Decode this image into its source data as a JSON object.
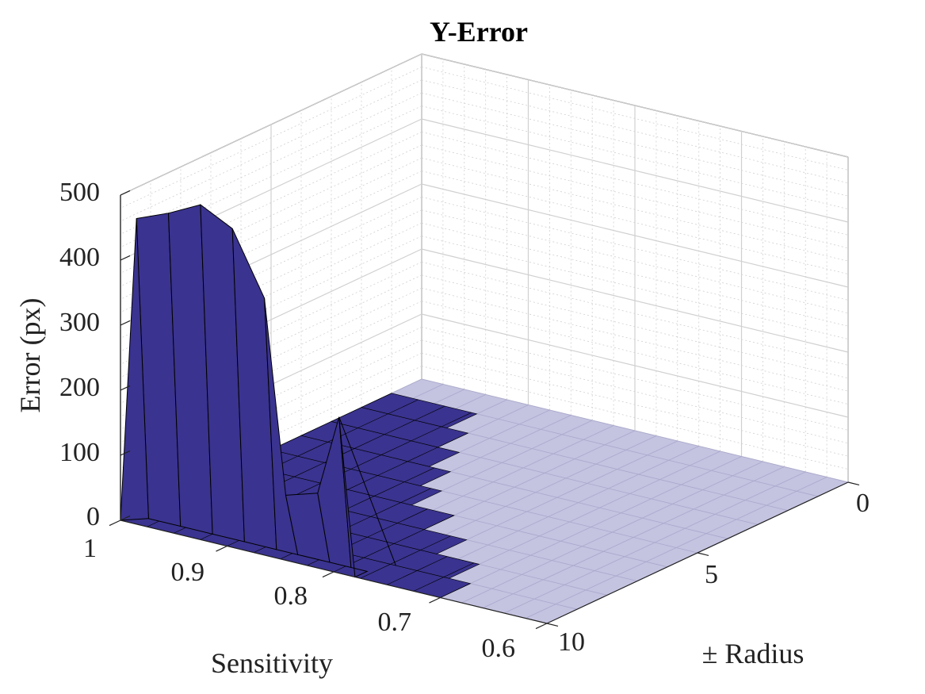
{
  "chart_data": {
    "type": "surface",
    "title": "Y-Error",
    "xlabel": "Sensitivity",
    "ylabel": "± Radius",
    "zlabel": "Error (px)",
    "xlim": [
      0.6,
      1.0
    ],
    "ylim": [
      0,
      10
    ],
    "zlim": [
      0,
      500
    ],
    "x_ticks": [
      "1",
      "0.9",
      "0.8",
      "0.7",
      "0.6"
    ],
    "y_ticks": [
      "0",
      "5",
      "10"
    ],
    "z_ticks": [
      "0",
      "100",
      "200",
      "300",
      "400",
      "500"
    ],
    "grid": true,
    "colors": {
      "raised_face": "#3a338f",
      "flat_face": "#c4c3e0",
      "edge": "#000000",
      "grid": "#d0d0d0"
    },
    "nonzero_points": [
      {
        "sensitivity": 1.0,
        "radius": 10,
        "error": 0
      },
      {
        "sensitivity": 1.0,
        "radius": 9,
        "error": 0
      },
      {
        "sensitivity": 1.0,
        "radius": 8,
        "error": 0
      },
      {
        "sensitivity": 1.0,
        "radius": 7,
        "error": 0
      },
      {
        "sensitivity": 1.0,
        "radius": 6,
        "error": 0
      },
      {
        "sensitivity": 1.0,
        "radius": 5,
        "error": 0
      },
      {
        "sensitivity": 1.0,
        "radius": 4,
        "error": 0
      },
      {
        "sensitivity": 1.0,
        "radius": 3,
        "error": 0
      },
      {
        "sensitivity": 1.0,
        "radius": 2,
        "error": 0
      },
      {
        "sensitivity": 1.0,
        "radius": 1,
        "error": 0
      },
      {
        "sensitivity": 0.98,
        "radius": 10,
        "error": 470
      },
      {
        "sensitivity": 0.95,
        "radius": 10,
        "error": 490
      },
      {
        "sensitivity": 0.93,
        "radius": 10,
        "error": 515
      },
      {
        "sensitivity": 0.9,
        "radius": 10,
        "error": 490
      },
      {
        "sensitivity": 0.88,
        "radius": 10,
        "error": 395
      },
      {
        "sensitivity": 0.85,
        "radius": 10,
        "error": 100
      },
      {
        "sensitivity": 0.83,
        "radius": 10,
        "error": 115
      },
      {
        "sensitivity": 0.8,
        "radius": 10,
        "error": 240
      },
      {
        "sensitivity": 0.78,
        "radius": 10,
        "error": 0
      }
    ]
  }
}
